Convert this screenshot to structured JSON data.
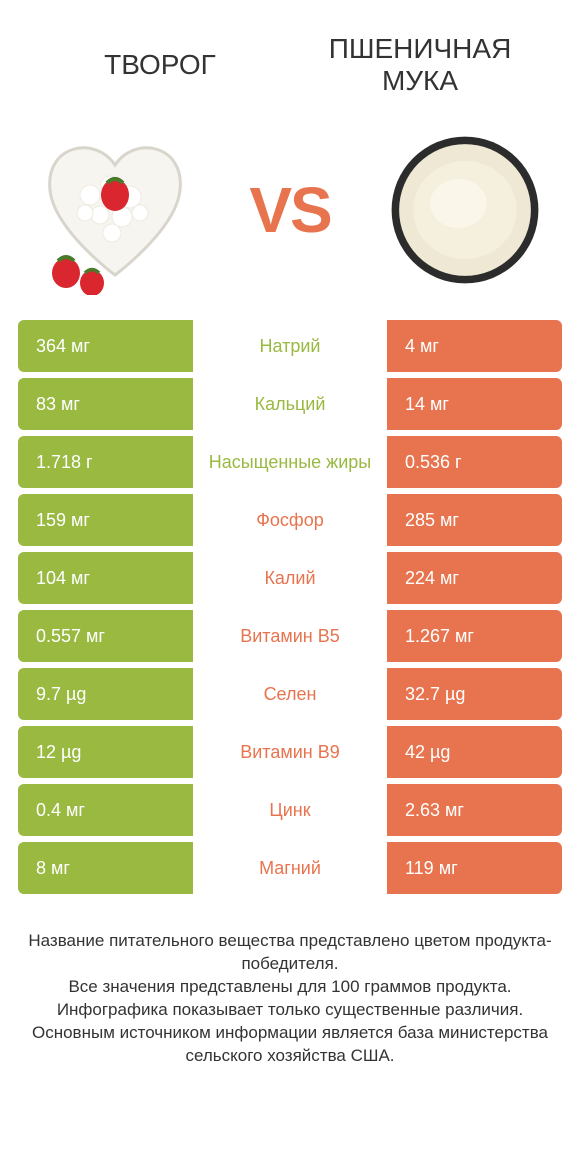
{
  "colors": {
    "left": "#99b941",
    "right": "#e8744f",
    "background": "#ffffff",
    "text": "#333333",
    "white": "#ffffff"
  },
  "header": {
    "left_title": "Творог",
    "right_title": "Пшеничная мука",
    "vs": "VS"
  },
  "rows": [
    {
      "label": "Натрий",
      "left": "364 мг",
      "right": "4 мг",
      "winner": "left"
    },
    {
      "label": "Кальций",
      "left": "83 мг",
      "right": "14 мг",
      "winner": "left"
    },
    {
      "label": "Насыщенные жиры",
      "left": "1.718 г",
      "right": "0.536 г",
      "winner": "left"
    },
    {
      "label": "Фосфор",
      "left": "159 мг",
      "right": "285 мг",
      "winner": "right"
    },
    {
      "label": "Калий",
      "left": "104 мг",
      "right": "224 мг",
      "winner": "right"
    },
    {
      "label": "Витамин B5",
      "left": "0.557 мг",
      "right": "1.267 мг",
      "winner": "right"
    },
    {
      "label": "Селен",
      "left": "9.7 µg",
      "right": "32.7 µg",
      "winner": "right"
    },
    {
      "label": "Витамин B9",
      "left": "12 µg",
      "right": "42 µg",
      "winner": "right"
    },
    {
      "label": "Цинк",
      "left": "0.4 мг",
      "right": "2.63 мг",
      "winner": "right"
    },
    {
      "label": "Магний",
      "left": "8 мг",
      "right": "119 мг",
      "winner": "right"
    }
  ],
  "footer": {
    "line1": "Название питательного вещества представлено цветом продукта-победителя.",
    "line2": "Все значения представлены для 100 граммов продукта.",
    "line3": "Инфографика показывает только существенные различия.",
    "line4": "Основным источником информации является база министерства сельского хозяйства США."
  }
}
